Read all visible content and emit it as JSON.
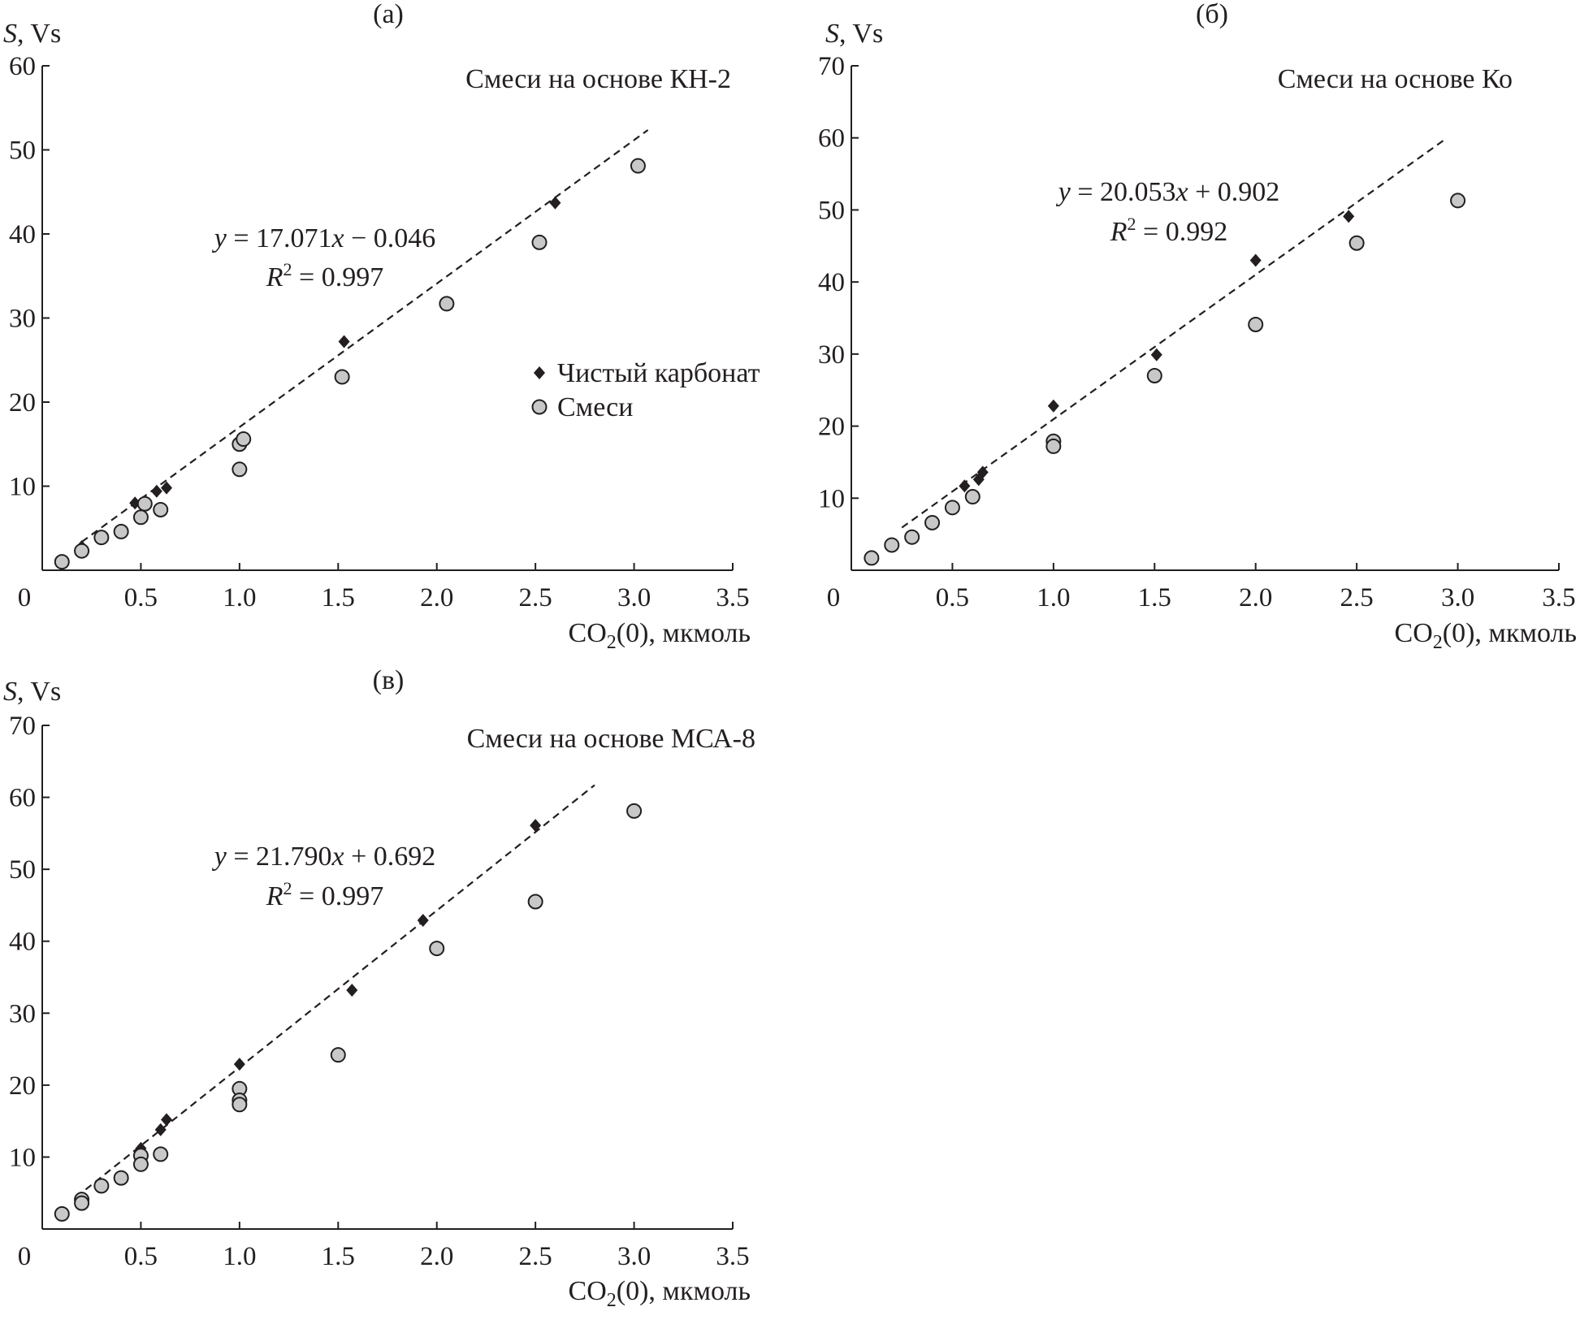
{
  "chart_data": [
    {
      "type": "scatter",
      "panel_label": "(а)",
      "title": "Смеси на основе КН-2",
      "ylabel_var": "S",
      "ylabel_unit": ", Vs",
      "xlabel_pre": "CO",
      "xlabel_sub": "2",
      "xlabel_post": "(0), мкмоль",
      "xlim": [
        0,
        3.5
      ],
      "ylim": [
        0,
        60
      ],
      "xticks": [
        "0",
        "0.5",
        "1.0",
        "1.5",
        "2.0",
        "2.5",
        "3.0",
        "3.5"
      ],
      "yticks": [
        "10",
        "20",
        "30",
        "40",
        "50",
        "60"
      ],
      "fit": {
        "slope": 17.071,
        "intercept": -0.046,
        "x_range": [
          0.2,
          3.07
        ],
        "eq_y": "y",
        "eq_mid": " = 17.071",
        "eq_x": "x",
        "eq_end": " − 0.046",
        "r_var": "R",
        "r_sup": "2",
        "r_val": " = 0.997"
      },
      "legend": {
        "show": true,
        "items": [
          "Чистый карбонат",
          "Смеси"
        ]
      },
      "series": [
        {
          "name": "Чистый карбонат",
          "marker": "diamond",
          "color": "#231f20",
          "points": [
            [
              0.2,
              2.8
            ],
            [
              0.47,
              8.0
            ],
            [
              0.58,
              9.4
            ],
            [
              0.63,
              9.8
            ],
            [
              1.53,
              27.2
            ],
            [
              2.6,
              43.7
            ]
          ]
        },
        {
          "name": "Смеси",
          "marker": "circle",
          "color": "#c8c8c8",
          "points": [
            [
              0.1,
              1.0
            ],
            [
              0.2,
              2.3
            ],
            [
              0.3,
              3.9
            ],
            [
              0.4,
              4.6
            ],
            [
              0.5,
              6.3
            ],
            [
              0.52,
              7.9
            ],
            [
              0.6,
              7.2
            ],
            [
              1.0,
              12.0
            ],
            [
              1.0,
              15.0
            ],
            [
              1.02,
              15.6
            ],
            [
              1.52,
              23.0
            ],
            [
              2.05,
              31.7
            ],
            [
              2.52,
              39.0
            ],
            [
              3.02,
              48.1
            ]
          ]
        }
      ]
    },
    {
      "type": "scatter",
      "panel_label": "(б)",
      "title": "Смеси на основе Ко",
      "ylabel_var": "S",
      "ylabel_unit": ", Vs",
      "xlabel_pre": "CO",
      "xlabel_sub": "2",
      "xlabel_post": "(0), мкмоль",
      "xlim": [
        0,
        3.5
      ],
      "ylim": [
        0,
        70
      ],
      "xticks": [
        "0",
        "0.5",
        "1.0",
        "1.5",
        "2.0",
        "2.5",
        "3.0",
        "3.5"
      ],
      "yticks": [
        "10",
        "20",
        "30",
        "40",
        "50",
        "60",
        "70"
      ],
      "fit": {
        "slope": 20.053,
        "intercept": 0.902,
        "x_range": [
          0.25,
          2.94
        ],
        "eq_y": "y",
        "eq_mid": " = 20.053",
        "eq_x": "x",
        "eq_end": " + 0.902",
        "r_var": "R",
        "r_sup": "2",
        "r_val": " = 0.992"
      },
      "legend": {
        "show": false,
        "items": []
      },
      "series": [
        {
          "name": "Чистый карбонат",
          "marker": "diamond",
          "color": "#231f20",
          "points": [
            [
              0.56,
              11.7
            ],
            [
              0.63,
              12.6
            ],
            [
              0.65,
              13.6
            ],
            [
              1.0,
              22.8
            ],
            [
              1.51,
              29.9
            ],
            [
              2.0,
              43.0
            ],
            [
              2.46,
              49.1
            ]
          ]
        },
        {
          "name": "Смеси",
          "marker": "circle",
          "color": "#c8c8c8",
          "points": [
            [
              0.1,
              1.7
            ],
            [
              0.2,
              3.5
            ],
            [
              0.3,
              4.6
            ],
            [
              0.4,
              6.6
            ],
            [
              0.5,
              8.7
            ],
            [
              0.6,
              10.2
            ],
            [
              1.0,
              17.9
            ],
            [
              1.0,
              17.2
            ],
            [
              1.5,
              27.0
            ],
            [
              2.0,
              34.1
            ],
            [
              2.5,
              45.4
            ],
            [
              3.0,
              51.3
            ]
          ]
        }
      ]
    },
    {
      "type": "scatter",
      "panel_label": "(в)",
      "title": "Смеси на основе МСА-8",
      "ylabel_var": "S",
      "ylabel_unit": ", Vs",
      "xlabel_pre": "CO",
      "xlabel_sub": "2",
      "xlabel_post": "(0), мкмоль",
      "xlim": [
        0,
        3.5
      ],
      "ylim": [
        0,
        70
      ],
      "xticks": [
        "0",
        "0.5",
        "1.0",
        "1.5",
        "2.0",
        "2.5",
        "3.0",
        "3.5"
      ],
      "yticks": [
        "10",
        "20",
        "30",
        "40",
        "50",
        "60",
        "70"
      ],
      "fit": {
        "slope": 21.79,
        "intercept": 0.692,
        "x_range": [
          0.22,
          2.8
        ],
        "eq_y": "y",
        "eq_mid": " = 21.790",
        "eq_x": "x",
        "eq_end": " + 0.692",
        "r_var": "R",
        "r_sup": "2",
        "r_val": " = 0.997"
      },
      "legend": {
        "show": false,
        "items": []
      },
      "series": [
        {
          "name": "Чистый карбонат",
          "marker": "diamond",
          "color": "#231f20",
          "points": [
            [
              0.5,
              11.2
            ],
            [
              0.6,
              13.8
            ],
            [
              0.63,
              15.2
            ],
            [
              1.0,
              22.9
            ],
            [
              1.57,
              33.2
            ],
            [
              1.93,
              42.9
            ],
            [
              2.5,
              56.1
            ]
          ]
        },
        {
          "name": "Смеси",
          "marker": "circle",
          "color": "#c8c8c8",
          "points": [
            [
              0.1,
              2.1
            ],
            [
              0.2,
              4.1
            ],
            [
              0.2,
              3.6
            ],
            [
              0.3,
              6.0
            ],
            [
              0.4,
              7.1
            ],
            [
              0.5,
              10.2
            ],
            [
              0.5,
              9.0
            ],
            [
              0.6,
              10.4
            ],
            [
              1.0,
              19.5
            ],
            [
              1.0,
              17.9
            ],
            [
              1.0,
              17.3
            ],
            [
              1.5,
              24.2
            ],
            [
              2.0,
              39.0
            ],
            [
              2.5,
              45.5
            ],
            [
              3.0,
              58.1
            ]
          ]
        }
      ]
    }
  ]
}
